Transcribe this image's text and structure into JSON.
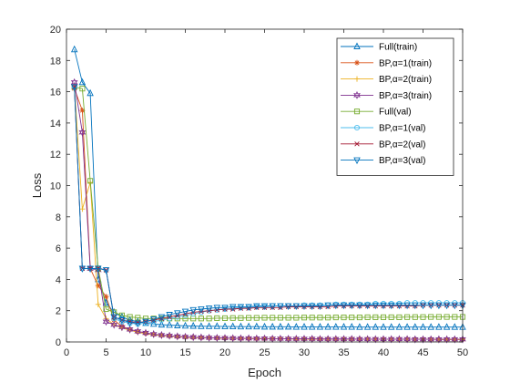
{
  "chart_data": {
    "type": "line",
    "xlabel": "Epoch",
    "ylabel": "Loss",
    "xlim": [
      0,
      50
    ],
    "ylim": [
      0,
      20
    ],
    "xticks": [
      0,
      5,
      10,
      15,
      20,
      25,
      30,
      35,
      40,
      45,
      50
    ],
    "yticks": [
      0,
      2,
      4,
      6,
      8,
      10,
      12,
      14,
      16,
      18,
      20
    ],
    "grid": false,
    "legend_position": "top-right",
    "x": [
      1,
      2,
      3,
      4,
      5,
      6,
      7,
      8,
      9,
      10,
      11,
      12,
      13,
      14,
      15,
      16,
      17,
      18,
      19,
      20,
      21,
      22,
      23,
      24,
      25,
      26,
      27,
      28,
      29,
      30,
      31,
      32,
      33,
      34,
      35,
      36,
      37,
      38,
      39,
      40,
      41,
      42,
      43,
      44,
      45,
      46,
      47,
      48,
      49,
      50
    ],
    "series": [
      {
        "name": "Full(train)",
        "color": "#0072BD",
        "marker": "triangle-up",
        "values": [
          18.7,
          16.6,
          15.9,
          4.0,
          2.5,
          1.9,
          1.6,
          1.4,
          1.3,
          1.2,
          1.15,
          1.1,
          1.08,
          1.05,
          1.03,
          1.02,
          1.0,
          1.0,
          1.0,
          0.99,
          0.99,
          0.98,
          0.98,
          0.98,
          0.97,
          0.97,
          0.97,
          0.97,
          0.96,
          0.96,
          0.96,
          0.96,
          0.96,
          0.96,
          0.96,
          0.96,
          0.95,
          0.95,
          0.95,
          0.95,
          0.95,
          0.95,
          0.95,
          0.95,
          0.95,
          0.95,
          0.95,
          0.95,
          0.95,
          0.95
        ]
      },
      {
        "name": "BP,α=1(train)",
        "color": "#D95319",
        "marker": "asterisk",
        "values": [
          16.2,
          14.8,
          4.7,
          3.6,
          2.9,
          1.4,
          1.0,
          0.8,
          0.65,
          0.55,
          0.48,
          0.42,
          0.38,
          0.34,
          0.31,
          0.29,
          0.27,
          0.26,
          0.25,
          0.24,
          0.23,
          0.22,
          0.22,
          0.21,
          0.21,
          0.2,
          0.2,
          0.2,
          0.19,
          0.19,
          0.19,
          0.19,
          0.18,
          0.18,
          0.18,
          0.18,
          0.18,
          0.18,
          0.17,
          0.17,
          0.17,
          0.17,
          0.17,
          0.17,
          0.17,
          0.17,
          0.16,
          0.16,
          0.16,
          0.16
        ]
      },
      {
        "name": "BP,α=2(train)",
        "color": "#EDB120",
        "marker": "plus",
        "values": [
          16.4,
          8.5,
          10.2,
          2.4,
          1.5,
          1.1,
          0.9,
          0.75,
          0.62,
          0.53,
          0.46,
          0.41,
          0.37,
          0.34,
          0.31,
          0.29,
          0.27,
          0.26,
          0.25,
          0.24,
          0.23,
          0.22,
          0.22,
          0.21,
          0.21,
          0.2,
          0.2,
          0.2,
          0.19,
          0.19,
          0.19,
          0.19,
          0.18,
          0.18,
          0.18,
          0.18,
          0.18,
          0.18,
          0.17,
          0.17,
          0.17,
          0.17,
          0.17,
          0.17,
          0.17,
          0.17,
          0.16,
          0.16,
          0.16,
          0.16
        ]
      },
      {
        "name": "BP,α=3(train)",
        "color": "#7E2F8E",
        "marker": "hexagram",
        "values": [
          16.6,
          13.4,
          4.7,
          4.6,
          1.3,
          1.1,
          0.95,
          0.8,
          0.68,
          0.58,
          0.5,
          0.44,
          0.4,
          0.36,
          0.33,
          0.31,
          0.29,
          0.27,
          0.26,
          0.25,
          0.24,
          0.23,
          0.23,
          0.22,
          0.22,
          0.21,
          0.21,
          0.2,
          0.2,
          0.2,
          0.2,
          0.19,
          0.19,
          0.19,
          0.19,
          0.19,
          0.18,
          0.18,
          0.18,
          0.18,
          0.18,
          0.18,
          0.18,
          0.17,
          0.17,
          0.17,
          0.17,
          0.17,
          0.17,
          0.17
        ]
      },
      {
        "name": "Full(val)",
        "color": "#77AC30",
        "marker": "square",
        "values": [
          16.3,
          16.2,
          10.3,
          4.7,
          2.1,
          1.9,
          1.7,
          1.6,
          1.55,
          1.5,
          1.5,
          1.5,
          1.5,
          1.5,
          1.5,
          1.5,
          1.5,
          1.5,
          1.52,
          1.52,
          1.53,
          1.53,
          1.54,
          1.54,
          1.55,
          1.55,
          1.55,
          1.55,
          1.55,
          1.56,
          1.56,
          1.56,
          1.56,
          1.57,
          1.57,
          1.57,
          1.57,
          1.58,
          1.58,
          1.58,
          1.58,
          1.58,
          1.59,
          1.59,
          1.59,
          1.6,
          1.6,
          1.6,
          1.6,
          1.6
        ]
      },
      {
        "name": "BP,α=1(val)",
        "color": "#4DBEEE",
        "marker": "circle",
        "values": [
          16.3,
          4.7,
          4.7,
          4.7,
          4.6,
          1.5,
          1.3,
          1.2,
          1.15,
          1.2,
          1.3,
          1.4,
          1.5,
          1.6,
          1.7,
          1.8,
          1.9,
          2.0,
          2.05,
          2.1,
          2.15,
          2.2,
          2.2,
          2.25,
          2.25,
          2.3,
          2.3,
          2.3,
          2.3,
          2.35,
          2.35,
          2.35,
          2.35,
          2.4,
          2.4,
          2.4,
          2.4,
          2.4,
          2.45,
          2.45,
          2.45,
          2.45,
          2.5,
          2.5,
          2.5,
          2.5,
          2.5,
          2.5,
          2.5,
          2.5
        ]
      },
      {
        "name": "BP,α=2(val)",
        "color": "#A2142F",
        "marker": "x",
        "values": [
          16.3,
          4.7,
          4.7,
          4.7,
          4.6,
          1.6,
          1.4,
          1.3,
          1.25,
          1.3,
          1.4,
          1.5,
          1.6,
          1.7,
          1.8,
          1.9,
          1.95,
          2.0,
          2.05,
          2.1,
          2.1,
          2.15,
          2.15,
          2.2,
          2.2,
          2.2,
          2.2,
          2.25,
          2.25,
          2.25,
          2.25,
          2.25,
          2.25,
          2.3,
          2.3,
          2.3,
          2.3,
          2.3,
          2.3,
          2.3,
          2.3,
          2.3,
          2.3,
          2.3,
          2.35,
          2.35,
          2.35,
          2.35,
          2.35,
          2.35
        ]
      },
      {
        "name": "BP,α=3(val)",
        "color": "#0072BD",
        "marker": "triangle-down",
        "values": [
          16.3,
          4.7,
          4.7,
          4.7,
          4.6,
          1.6,
          1.4,
          1.25,
          1.2,
          1.3,
          1.45,
          1.6,
          1.75,
          1.85,
          1.95,
          2.05,
          2.1,
          2.15,
          2.2,
          2.2,
          2.25,
          2.25,
          2.25,
          2.3,
          2.3,
          2.3,
          2.3,
          2.3,
          2.3,
          2.3,
          2.3,
          2.3,
          2.35,
          2.35,
          2.35,
          2.35,
          2.35,
          2.35,
          2.35,
          2.35,
          2.35,
          2.35,
          2.35,
          2.35,
          2.35,
          2.35,
          2.35,
          2.35,
          2.35,
          2.35
        ]
      }
    ]
  }
}
